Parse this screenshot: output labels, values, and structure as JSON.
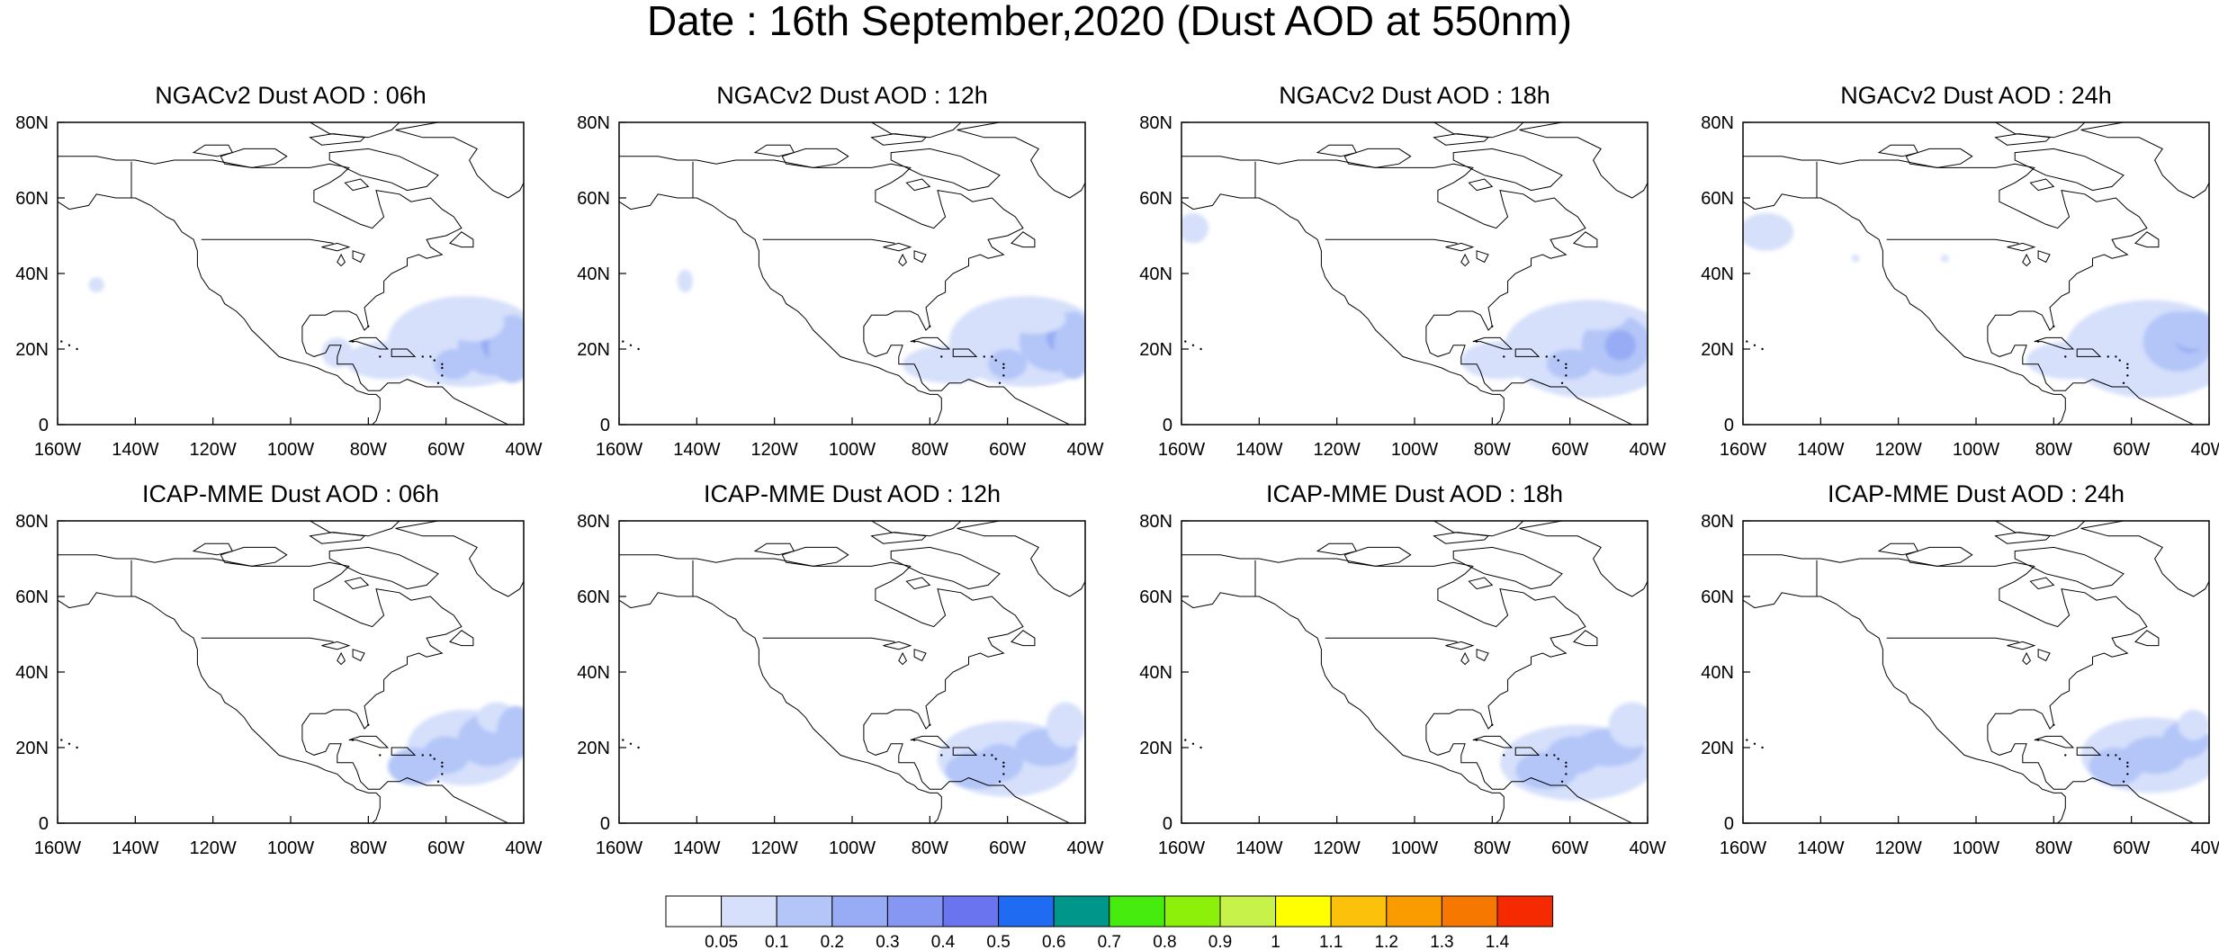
{
  "title": "Date : 16th September,2020 (Dust AOD at 550nm)",
  "panels": [
    {
      "title": "NGACv2 Dust AOD : 06h",
      "model": "NGACv2",
      "lead": "06h"
    },
    {
      "title": "NGACv2 Dust AOD : 12h",
      "model": "NGACv2",
      "lead": "12h"
    },
    {
      "title": "NGACv2 Dust AOD : 18h",
      "model": "NGACv2",
      "lead": "18h"
    },
    {
      "title": "NGACv2 Dust AOD : 24h",
      "model": "NGACv2",
      "lead": "24h"
    },
    {
      "title": "ICAP-MME Dust AOD : 06h",
      "model": "ICAP-MME",
      "lead": "06h"
    },
    {
      "title": "ICAP-MME Dust AOD : 12h",
      "model": "ICAP-MME",
      "lead": "12h"
    },
    {
      "title": "ICAP-MME Dust AOD : 18h",
      "model": "ICAP-MME",
      "lead": "18h"
    },
    {
      "title": "ICAP-MME Dust AOD : 24h",
      "model": "ICAP-MME",
      "lead": "24h"
    }
  ],
  "axes": {
    "lon_range": [
      -160,
      -40
    ],
    "lat_range": [
      0,
      80
    ],
    "x_ticks": [
      "160W",
      "140W",
      "120W",
      "100W",
      "80W",
      "60W",
      "40W"
    ],
    "y_ticks": [
      "80N",
      "60N",
      "40N",
      "20N",
      "0"
    ]
  },
  "colorbar": {
    "labels": [
      "0.05",
      "0.1",
      "0.2",
      "0.3",
      "0.4",
      "0.5",
      "0.6",
      "0.7",
      "0.8",
      "0.9",
      "1",
      "1.1",
      "1.2",
      "1.3",
      "1.4"
    ],
    "colors": [
      "#ffffff",
      "#d6e0fb",
      "#b4c6f8",
      "#97acf5",
      "#8597f3",
      "#6b74ef",
      "#1f6cf2",
      "#00968a",
      "#46ec0d",
      "#8cf00b",
      "#c6f24a",
      "#ffff00",
      "#fbc10b",
      "#fa9c00",
      "#f77800",
      "#f62a00"
    ]
  },
  "dust_colors": [
    "#d6e0fb",
    "#b4c6f8",
    "#97acf5"
  ]
}
